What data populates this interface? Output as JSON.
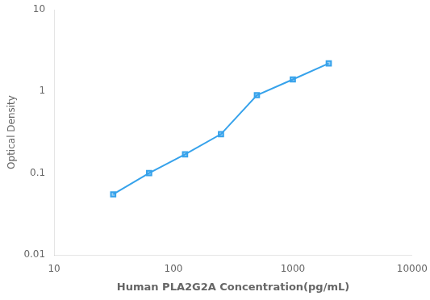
{
  "chart_data": {
    "type": "line",
    "x": [
      31.25,
      62.5,
      125,
      250,
      500,
      1000,
      2000
    ],
    "values": [
      0.055,
      0.1,
      0.17,
      0.3,
      0.9,
      1.4,
      2.2
    ],
    "xlabel": "Human PLA2G2A Concentration(pg/mL)",
    "ylabel": "Optical Density",
    "log": true,
    "xlim": [
      10,
      10000
    ],
    "ylim": [
      0.01,
      10
    ],
    "xticks": [
      10,
      100,
      1000,
      10000
    ],
    "yticks": [
      0.01,
      0.1,
      1,
      10
    ],
    "grid": false,
    "marker": "square",
    "line_style": "solid"
  }
}
